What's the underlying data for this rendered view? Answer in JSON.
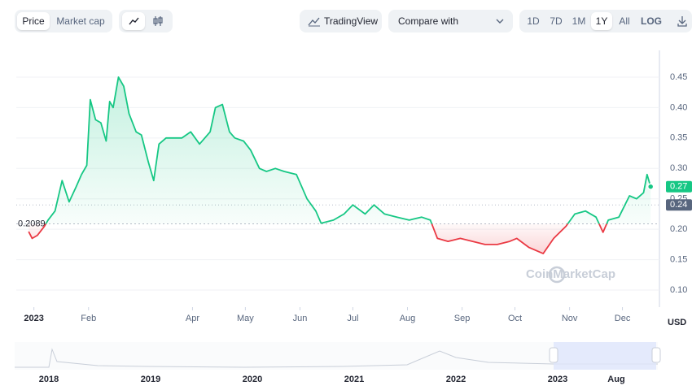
{
  "toolbar": {
    "tabs": [
      "Price",
      "Market cap"
    ],
    "active_tab": "Price",
    "tradingview": "TradingView",
    "compare": "Compare with",
    "ranges": [
      "1D",
      "7D",
      "1M",
      "1Y",
      "All"
    ],
    "active_range": "1Y",
    "log": "LOG"
  },
  "chart_data": {
    "type": "line",
    "x": [
      -3,
      -1,
      2,
      6,
      8,
      12,
      16,
      20,
      24,
      27,
      30,
      32,
      35,
      38,
      41,
      43,
      45,
      48,
      51,
      54,
      58,
      61,
      65,
      68,
      71,
      75,
      80,
      84,
      89,
      94,
      100,
      103,
      107,
      111,
      114,
      119,
      123,
      128,
      132,
      137,
      142,
      149,
      155,
      160,
      163,
      170,
      176,
      181,
      188,
      193,
      199,
      206,
      213,
      220,
      225,
      229,
      235,
      242,
      249,
      256,
      263,
      270,
      274,
      281,
      289,
      295,
      302,
      307,
      313,
      319,
      323,
      326,
      332,
      338,
      342,
      346,
      348,
      350
    ],
    "series": [
      {
        "color": "#16c784",
        "color_down": "#ea3943",
        "values": [
          0.196,
          0.185,
          0.19,
          0.205,
          0.215,
          0.23,
          0.28,
          0.245,
          0.27,
          0.29,
          0.305,
          0.413,
          0.38,
          0.375,
          0.345,
          0.41,
          0.4,
          0.45,
          0.435,
          0.39,
          0.36,
          0.355,
          0.31,
          0.28,
          0.34,
          0.35,
          0.35,
          0.35,
          0.36,
          0.34,
          0.36,
          0.4,
          0.405,
          0.36,
          0.35,
          0.345,
          0.33,
          0.3,
          0.295,
          0.3,
          0.295,
          0.29,
          0.25,
          0.23,
          0.21,
          0.215,
          0.225,
          0.24,
          0.225,
          0.24,
          0.225,
          0.22,
          0.215,
          0.22,
          0.215,
          0.185,
          0.18,
          0.185,
          0.18,
          0.175,
          0.175,
          0.18,
          0.185,
          0.17,
          0.16,
          0.185,
          0.205,
          0.225,
          0.23,
          0.22,
          0.195,
          0.215,
          0.22,
          0.255,
          0.25,
          0.26,
          0.29,
          0.27
        ]
      }
    ],
    "xlim": [
      -10,
      355
    ],
    "xticks": [
      {
        "value": 0,
        "label": "2023"
      },
      {
        "value": 31,
        "label": "Feb"
      },
      {
        "value": 90,
        "label": "Apr"
      },
      {
        "value": 120,
        "label": "May"
      },
      {
        "value": 151,
        "label": "Jun"
      },
      {
        "value": 181,
        "label": "Jul"
      },
      {
        "value": 212,
        "label": "Aug"
      },
      {
        "value": 243,
        "label": "Sep"
      },
      {
        "value": 273,
        "label": "Oct"
      },
      {
        "value": 304,
        "label": "Nov"
      },
      {
        "value": 334,
        "label": "Dec"
      }
    ],
    "ylim": [
      0.072,
      0.494
    ],
    "yticks": [
      {
        "value": 0.1,
        "label": "0.10"
      },
      0.15,
      {
        "value": 0.2,
        "label": "0.20"
      },
      0.25,
      {
        "value": 0.3,
        "label": "0.30"
      },
      0.35,
      {
        "value": 0.4,
        "label": "0.40"
      },
      0.45
    ],
    "grid": true,
    "y_unit": "USD",
    "baseline": 0.2089,
    "last_price": 0.27,
    "ref_price": 0.24,
    "watermark": "CoinMarketCap",
    "navigator": {
      "labels": [
        "2018",
        "2019",
        "2020",
        "2021",
        "2022",
        "2023",
        "Aug"
      ]
    }
  }
}
